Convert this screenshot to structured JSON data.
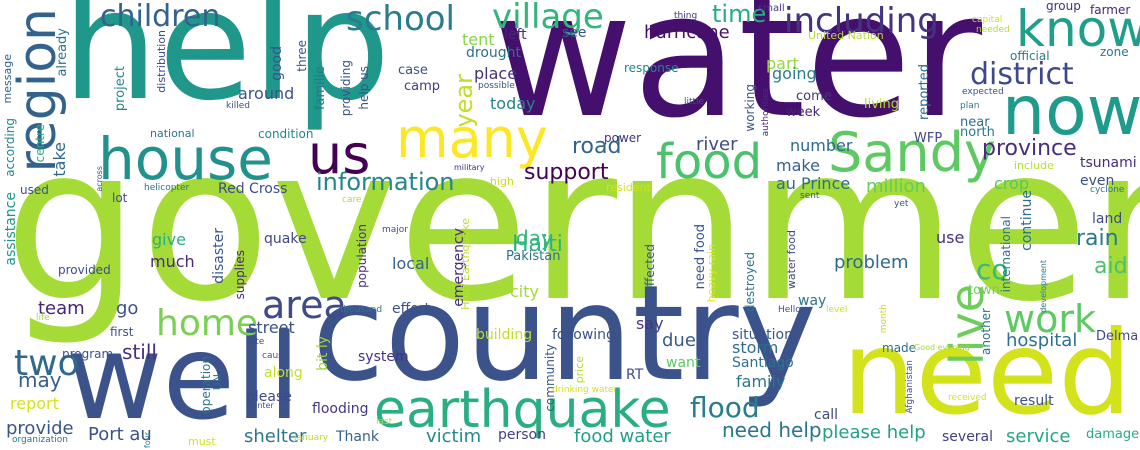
{
  "words": [
    {
      "text": "government",
      "color": "#a5db36"
    },
    {
      "text": "water",
      "color": "#440f6d"
    },
    {
      "text": "help",
      "color": "#1f978b"
    },
    {
      "text": "country",
      "color": "#3b528b"
    },
    {
      "text": "need",
      "color": "#d2e21b"
    },
    {
      "text": "well",
      "color": "#3b528b"
    },
    {
      "text": "house",
      "color": "#21918c"
    },
    {
      "text": "now",
      "color": "#1e9b8a"
    },
    {
      "text": "earthquake",
      "color": "#29af7f"
    },
    {
      "text": "many",
      "color": "#fde725"
    },
    {
      "text": "region",
      "color": "#33638d"
    },
    {
      "text": "know",
      "color": "#1f9e89"
    },
    {
      "text": "Sandy",
      "color": "#5ec962"
    },
    {
      "text": "us",
      "color": "#440154"
    },
    {
      "text": "food",
      "color": "#4ac16d"
    },
    {
      "text": "area",
      "color": "#3e4a89"
    },
    {
      "text": "live",
      "color": "#6ccd5a"
    },
    {
      "text": "home",
      "color": "#7ad151"
    },
    {
      "text": "work",
      "color": "#5ec962"
    },
    {
      "text": "two",
      "color": "#31688e"
    },
    {
      "text": "school",
      "color": "#287c8e"
    },
    {
      "text": "children",
      "color": "#33638d"
    },
    {
      "text": "village",
      "color": "#31b57b"
    },
    {
      "text": "including",
      "color": "#46337e"
    },
    {
      "text": "district",
      "color": "#3e4989"
    },
    {
      "text": "flood",
      "color": "#287d8e"
    },
    {
      "text": "information",
      "color": "#25848e"
    },
    {
      "text": "province",
      "color": "#472d7b"
    },
    {
      "text": "support",
      "color": "#440154"
    },
    {
      "text": "Haiti",
      "color": "#2db27d"
    },
    {
      "text": "day",
      "color": "#35b779"
    },
    {
      "text": "rain",
      "color": "#2a788e"
    },
    {
      "text": "road",
      "color": "#33638d"
    },
    {
      "text": "aid",
      "color": "#4ac16d"
    },
    {
      "text": "co",
      "color": "#38b977"
    },
    {
      "text": "time",
      "color": "#27ad81"
    },
    {
      "text": "year",
      "color": "#bddf26"
    },
    {
      "text": "need help",
      "color": "#2a768e"
    },
    {
      "text": "please help",
      "color": "#1fa188"
    },
    {
      "text": "still",
      "color": "#46307e"
    },
    {
      "text": "may",
      "color": "#365c8d"
    },
    {
      "text": "problem",
      "color": "#30698e"
    },
    {
      "text": "shelter",
      "color": "#2a778e"
    },
    {
      "text": "victim",
      "color": "#23898e"
    },
    {
      "text": "food water",
      "color": "#1fa088"
    },
    {
      "text": "service",
      "color": "#21a685"
    },
    {
      "text": "hospital",
      "color": "#2c728e"
    },
    {
      "text": "Port au",
      "color": "#3b528b"
    },
    {
      "text": "go",
      "color": "#3b528b"
    },
    {
      "text": "team",
      "color": "#482475"
    },
    {
      "text": "provide",
      "color": "#39568c"
    },
    {
      "text": "hurricane",
      "color": "#471063"
    },
    {
      "text": "river",
      "color": "#3e4a89"
    },
    {
      "text": "make",
      "color": "#34618d"
    },
    {
      "text": "au Prince",
      "color": "#2e6d8e"
    },
    {
      "text": "million",
      "color": "#65cb5e"
    },
    {
      "text": "crop",
      "color": "#56c667"
    },
    {
      "text": "tsunami",
      "color": "#472c7a"
    },
    {
      "text": "even",
      "color": "#3d4e8a"
    },
    {
      "text": "land",
      "color": "#3e4a89"
    },
    {
      "text": "district",
      "color": "#3e4989"
    },
    {
      "text": "place",
      "color": "#46327e"
    },
    {
      "text": "today",
      "color": "#26828e"
    },
    {
      "text": "tent",
      "color": "#86d549"
    },
    {
      "text": "drought",
      "color": "#2e6f8e"
    },
    {
      "text": "left",
      "color": "#482878"
    },
    {
      "text": "see",
      "color": "#3a538b"
    },
    {
      "text": "part",
      "color": "#94d840"
    },
    {
      "text": "going",
      "color": "#287c8e"
    },
    {
      "text": "number",
      "color": "#31688e"
    },
    {
      "text": "much",
      "color": "#482878"
    },
    {
      "text": "give",
      "color": "#2ab07f"
    },
    {
      "text": "local",
      "color": "#33638d"
    },
    {
      "text": "say",
      "color": "#453882"
    },
    {
      "text": "city",
      "color": "#a2da37"
    },
    {
      "text": "family",
      "color": "#2c738e"
    },
    {
      "text": "storm",
      "color": "#2e6e8e"
    },
    {
      "text": "due",
      "color": "#375b8d"
    },
    {
      "text": "use",
      "color": "#46327e"
    },
    {
      "text": "around",
      "color": "#3b528b"
    },
    {
      "text": "Red Cross",
      "color": "#3d4d8a"
    },
    {
      "text": "take",
      "color": "#31688e"
    },
    {
      "text": "quake",
      "color": "#3f4788"
    },
    {
      "text": "street",
      "color": "#3b528b"
    },
    {
      "text": "report",
      "color": "#d8e219"
    },
    {
      "text": "Thank",
      "color": "#34618d"
    },
    {
      "text": "flooding",
      "color": "#453581"
    },
    {
      "text": "please",
      "color": "#3e4989"
    },
    {
      "text": "along",
      "color": "#c2df23"
    },
    {
      "text": "system",
      "color": "#46327e"
    },
    {
      "text": "call",
      "color": "#3e4a89"
    },
    {
      "text": "want",
      "color": "#5ec962"
    },
    {
      "text": "Santiago",
      "color": "#2c728e"
    },
    {
      "text": "RT",
      "color": "#3e4989"
    },
    {
      "text": "person",
      "color": "#433e85"
    },
    {
      "text": "several",
      "color": "#433e85"
    },
    {
      "text": "result",
      "color": "#3b528b"
    },
    {
      "text": "damage",
      "color": "#26ad81"
    },
    {
      "text": "Pakistan",
      "color": "#2d708e"
    },
    {
      "text": "following",
      "color": "#3b528b"
    },
    {
      "text": "situation",
      "color": "#39558c"
    },
    {
      "text": "building",
      "color": "#bddf26"
    },
    {
      "text": "effort",
      "color": "#3b528b"
    },
    {
      "text": "way",
      "color": "#2a768e"
    },
    {
      "text": "town",
      "color": "#6ece58"
    },
    {
      "text": "come",
      "color": "#46327e"
    },
    {
      "text": "week",
      "color": "#482475"
    },
    {
      "text": "living",
      "color": "#b5de2b"
    },
    {
      "text": "near",
      "color": "#2e6d8e"
    },
    {
      "text": "north",
      "color": "#2a788e"
    },
    {
      "text": "WFP",
      "color": "#3f4788"
    },
    {
      "text": "case",
      "color": "#3b528b"
    },
    {
      "text": "camp",
      "color": "#443a83"
    },
    {
      "text": "response",
      "color": "#24878e"
    },
    {
      "text": "official",
      "color": "#2a778e"
    },
    {
      "text": "group",
      "color": "#46307e"
    },
    {
      "text": "farmer",
      "color": "#482575"
    },
    {
      "text": "zone",
      "color": "#2a788e"
    },
    {
      "text": "United Nation",
      "color": "#b5de2b"
    },
    {
      "text": "small",
      "color": "#453882"
    },
    {
      "text": "condition",
      "color": "#25848e"
    },
    {
      "text": "first",
      "color": "#3b528b"
    },
    {
      "text": "program",
      "color": "#3b528b"
    },
    {
      "text": "provided",
      "color": "#3e4a89"
    },
    {
      "text": "used",
      "color": "#3b528b"
    },
    {
      "text": "lot",
      "color": "#3e4a89"
    },
    {
      "text": "national",
      "color": "#2c738e"
    },
    {
      "text": "power",
      "color": "#46337e"
    },
    {
      "text": "high",
      "color": "#c8e020"
    },
    {
      "text": "resident",
      "color": "#d2e21b"
    },
    {
      "text": "centre",
      "color": "#2ab07f"
    },
    {
      "text": "good",
      "color": "#3b528b"
    },
    {
      "text": "three",
      "color": "#3b528b"
    },
    {
      "text": "Delma",
      "color": "#3e4a89"
    },
    {
      "text": "school",
      "color": "#287c8e"
    },
    {
      "text": "message",
      "color": "#33638d"
    },
    {
      "text": "already",
      "color": "#2c728e"
    },
    {
      "text": "according",
      "color": "#24868e"
    },
    {
      "text": "assistance",
      "color": "#1f948c"
    },
    {
      "text": "project",
      "color": "#24878e"
    },
    {
      "text": "distribution",
      "color": "#3e4989"
    },
    {
      "text": "familie",
      "color": "#2a778e"
    },
    {
      "text": "providing",
      "color": "#3b528b"
    },
    {
      "text": "help us",
      "color": "#3b528b"
    },
    {
      "text": "disaster",
      "color": "#39568c"
    },
    {
      "text": "supplies",
      "color": "#482878"
    },
    {
      "text": "population",
      "color": "#46307e"
    },
    {
      "text": "emergency",
      "color": "#472d7b"
    },
    {
      "text": "Haiti Earthquake",
      "color": "#bddf26"
    },
    {
      "text": "community",
      "color": "#39568c"
    },
    {
      "text": "need food",
      "color": "#3a538b"
    },
    {
      "text": "affected",
      "color": "#3b528b"
    },
    {
      "text": "water food",
      "color": "#3f4788"
    },
    {
      "text": "heavy rain",
      "color": "#e1e51b"
    },
    {
      "text": "destroyed",
      "color": "#2c728e"
    },
    {
      "text": "working",
      "color": "#3b528b"
    },
    {
      "text": "reported",
      "color": "#31688e"
    },
    {
      "text": "international",
      "color": "#2c738e"
    },
    {
      "text": "continue",
      "color": "#2e6d8e"
    },
    {
      "text": "another",
      "color": "#2d708e"
    },
    {
      "text": "include",
      "color": "#b5de2b"
    },
    {
      "text": "bit ly",
      "color": "#9fda3a"
    },
    {
      "text": "operation",
      "color": "#2a768e"
    },
    {
      "text": "UN",
      "color": "#2e6d8e"
    },
    {
      "text": "price",
      "color": "#b5de2b"
    },
    {
      "text": "authorities",
      "color": "#46307e"
    },
    {
      "text": "little",
      "color": "#3b528b"
    },
    {
      "text": "thing",
      "color": "#46327e"
    },
    {
      "text": "capital",
      "color": "#d8e219"
    },
    {
      "text": "needed",
      "color": "#b5de2b"
    },
    {
      "text": "expected",
      "color": "#3b528b"
    },
    {
      "text": "plan",
      "color": "#2a778e"
    },
    {
      "text": "cyclone",
      "color": "#2a768e"
    },
    {
      "text": "killed",
      "color": "#3b528b"
    },
    {
      "text": "possible",
      "color": "#3b528b"
    },
    {
      "text": "military",
      "color": "#46327e"
    },
    {
      "text": "across",
      "color": "#3b528b"
    },
    {
      "text": "helicopter",
      "color": "#2c728e"
    },
    {
      "text": "care",
      "color": "#b5de2b"
    },
    {
      "text": "major",
      "color": "#3b528b"
    },
    {
      "text": "thousand",
      "color": "#2a788e"
    },
    {
      "text": "site",
      "color": "#3e4a89"
    },
    {
      "text": "cause",
      "color": "#3b528b"
    },
    {
      "text": "center",
      "color": "#3b528b"
    },
    {
      "text": "organization",
      "color": "#2a768e"
    },
    {
      "text": "must",
      "color": "#d2e21b"
    },
    {
      "text": "four",
      "color": "#2a788e"
    },
    {
      "text": "January",
      "color": "#bddf26"
    },
    {
      "text": "last",
      "color": "#b5de2b"
    },
    {
      "text": "drinking water",
      "color": "#d8e219"
    },
    {
      "text": "Hello",
      "color": "#3b528b"
    },
    {
      "text": "level",
      "color": "#d2e21b"
    },
    {
      "text": "month",
      "color": "#bddf26"
    },
    {
      "text": "made",
      "color": "#2e6d8e"
    },
    {
      "text": "Good evening",
      "color": "#a5db36"
    },
    {
      "text": "Afghanistan",
      "color": "#3b528b"
    },
    {
      "text": "received",
      "color": "#d8e219"
    },
    {
      "text": "sent",
      "color": "#3b528b"
    },
    {
      "text": "yet",
      "color": "#3b528b"
    },
    {
      "text": "development",
      "color": "#2a788e"
    },
    {
      "text": "life",
      "color": "#b5de2b"
    }
  ]
}
